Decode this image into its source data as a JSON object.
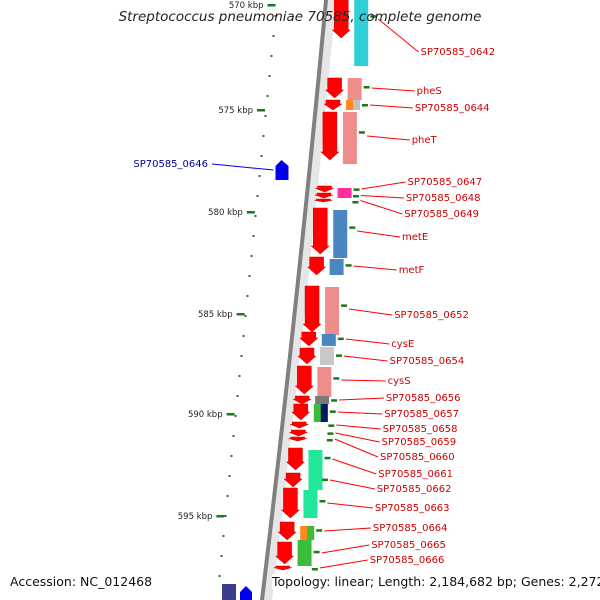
{
  "title": "Streptococcus pneumoniae 70585, complete genome",
  "footer": {
    "accession": "Accession: NC_012468",
    "topology": "Topology: linear; Length: 2,184,682 bp; Genes: 2,272"
  },
  "colors": {
    "forward_arrow": "#ff0000",
    "reverse_arrow": "#0000ee",
    "label_red": "#cc0000",
    "label_blue": "#000099",
    "tick": "#1a7a1a",
    "backbone": "#808080"
  },
  "chart_data": {
    "type": "genome-map",
    "scale_kbp": [
      "570 kbp",
      "575 kbp",
      "580 kbp",
      "585 kbp",
      "590 kbp",
      "595 kbp"
    ],
    "genes": [
      {
        "label": "SP70585_0642",
        "strand": "+"
      },
      {
        "label": "pheS",
        "strand": "+"
      },
      {
        "label": "SP70585_0644",
        "strand": "+"
      },
      {
        "label": "pheT",
        "strand": "+"
      },
      {
        "label": "SP70585_0646",
        "strand": "-"
      },
      {
        "label": "SP70585_0647",
        "strand": "+"
      },
      {
        "label": "SP70585_0648",
        "strand": "+"
      },
      {
        "label": "SP70585_0649",
        "strand": "+"
      },
      {
        "label": "metE",
        "strand": "+"
      },
      {
        "label": "metF",
        "strand": "+"
      },
      {
        "label": "SP70585_0652",
        "strand": "+"
      },
      {
        "label": "cysE",
        "strand": "+"
      },
      {
        "label": "SP70585_0654",
        "strand": "+"
      },
      {
        "label": "cysS",
        "strand": "+"
      },
      {
        "label": "SP70585_0656",
        "strand": "+"
      },
      {
        "label": "SP70585_0657",
        "strand": "+"
      },
      {
        "label": "SP70585_0658",
        "strand": "+"
      },
      {
        "label": "SP70585_0659",
        "strand": "+"
      },
      {
        "label": "SP70585_0660",
        "strand": "+"
      },
      {
        "label": "SP70585_0661",
        "strand": "+"
      },
      {
        "label": "SP70585_0662",
        "strand": "+"
      },
      {
        "label": "SP70585_0663",
        "strand": "+"
      },
      {
        "label": "SP70585_0664",
        "strand": "+"
      },
      {
        "label": "SP70585_0665",
        "strand": "+"
      },
      {
        "label": "SP70585_0666",
        "strand": "+"
      }
    ]
  }
}
